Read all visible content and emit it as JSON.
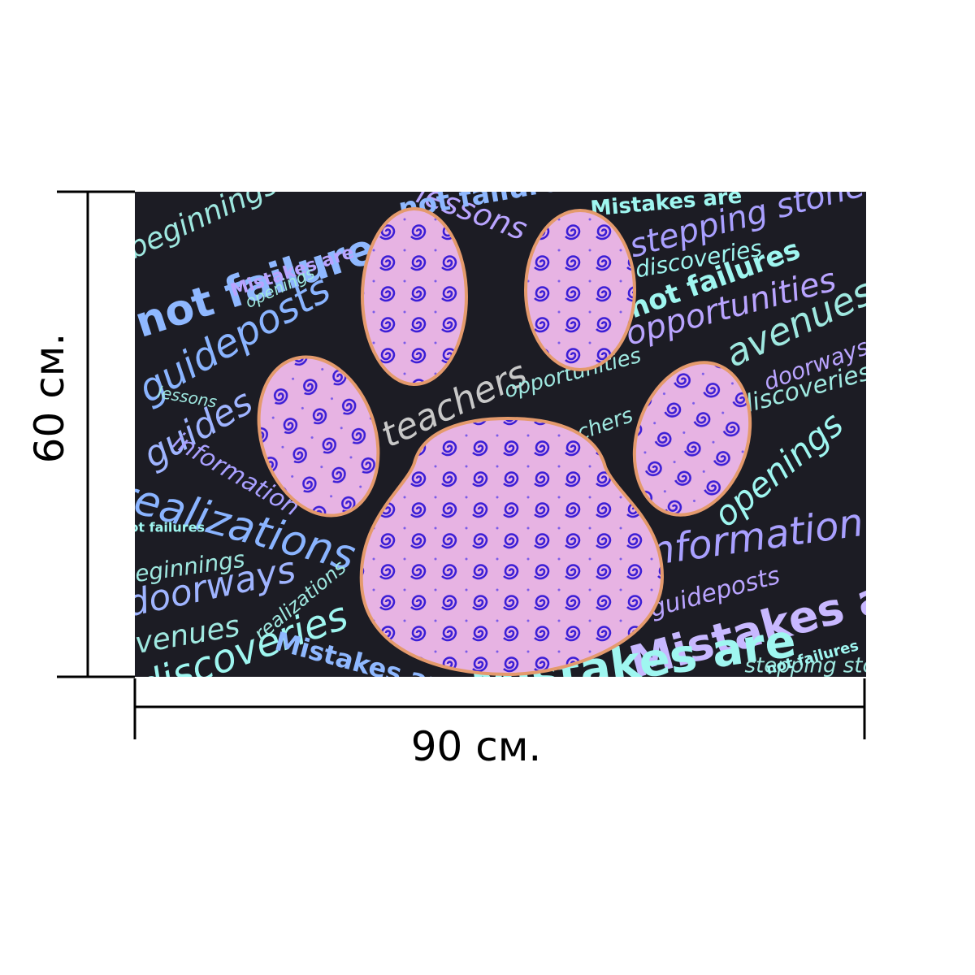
{
  "dimensions": {
    "height": "60 см.",
    "width": "90 см."
  },
  "image": {
    "words": [
      "Mistakes are",
      "not failures",
      "lessons",
      "beginnings",
      "guideposts",
      "guides",
      "realizations",
      "doorways",
      "avenues",
      "discoveries",
      "teachers",
      "opportunities",
      "stepping stones",
      "openings",
      "information"
    ]
  }
}
